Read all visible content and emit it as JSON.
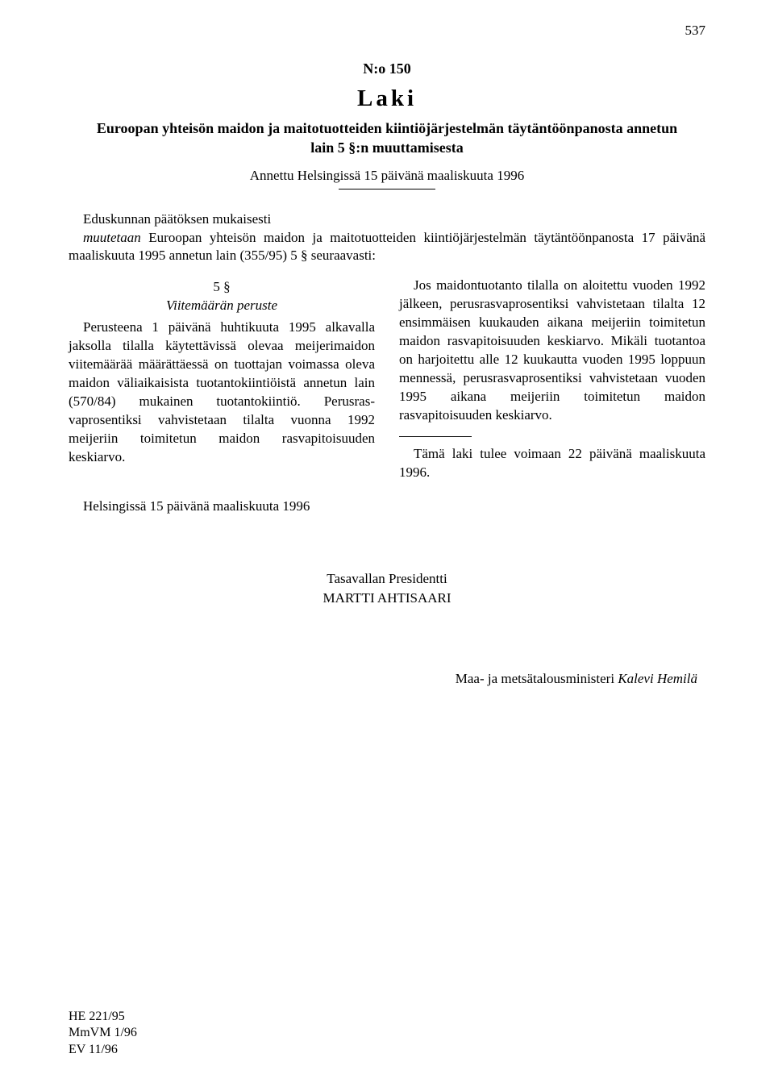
{
  "page_number": "537",
  "law_number": "N:o 150",
  "law_word": "Laki",
  "law_title_line1": "Euroopan yhteisön maidon ja maitotuotteiden kiintiöjärjestelmän täytäntöönpanosta annetun",
  "law_title_line2": "lain 5 §:n muuttamisesta",
  "given": "Annettu Helsingissä 15 päivänä maaliskuuta 1996",
  "preamble_line1": "Eduskunnan päätöksen mukaisesti",
  "preamble_muutetaan": "muutetaan",
  "preamble_rest": " Euroopan yhteisön maidon ja maitotuotteiden kiintiöjärjestelmän täytäntöön­panosta 17 päivänä maaliskuuta 1995 annetun lain (355/95) 5 § seuraavasti:",
  "section_num": "5 §",
  "section_title": "Viitemäärän peruste",
  "col_para1": "Perusteena 1 päivänä huhtikuuta 1995 al­kavalla jaksolla tilalla käytettävissä olevaa meijerimaidon viitemäärää määrättäessä on tuottajan voimassa oleva maidon väliaikai­sista tuotantokiintiöistä annetun lain (570/84) mukainen tuotantokiintiö. Perusras­vaprosentiksi vahvistetaan tilalta vuonna 1992 meijeriin toimitetun maidon rasvapitoi­suuden keskiarvo.",
  "col_para2a": "Jos maidontuotanto tilalla on aloitettu vuo­",
  "col_para2b": "den 1992 jälkeen, perusrasvaprosentiksi vah­vistetaan tilalta 12 ensimmäisen kuukauden aikana meijeriin toimitetun maidon rasvapi­toisuuden keskiarvo. Mikäli tuotantoa on harjoitettu alle 12 kuukautta vuoden 1995 loppuun mennessä, perusrasvaprosentiksi vahvistetaan vuoden 1995 aikana meijeriin toimitetun maidon rasvapitoisuuden keskiar­vo.",
  "col_para3": "Tämä laki tulee voimaan 22 päivänä maalis­kuuta 1996.",
  "closing": "Helsingissä 15 päivänä maaliskuuta 1996",
  "president_label": "Tasavallan Presidentti",
  "president_name": "MARTTI AHTISAARI",
  "minister_prefix": "Maa- ja metsätalousministeri ",
  "minister_name": "Kalevi Hemilä",
  "refs": [
    "HE 221/95",
    "MmVM 1/96",
    "EV 11/96"
  ]
}
